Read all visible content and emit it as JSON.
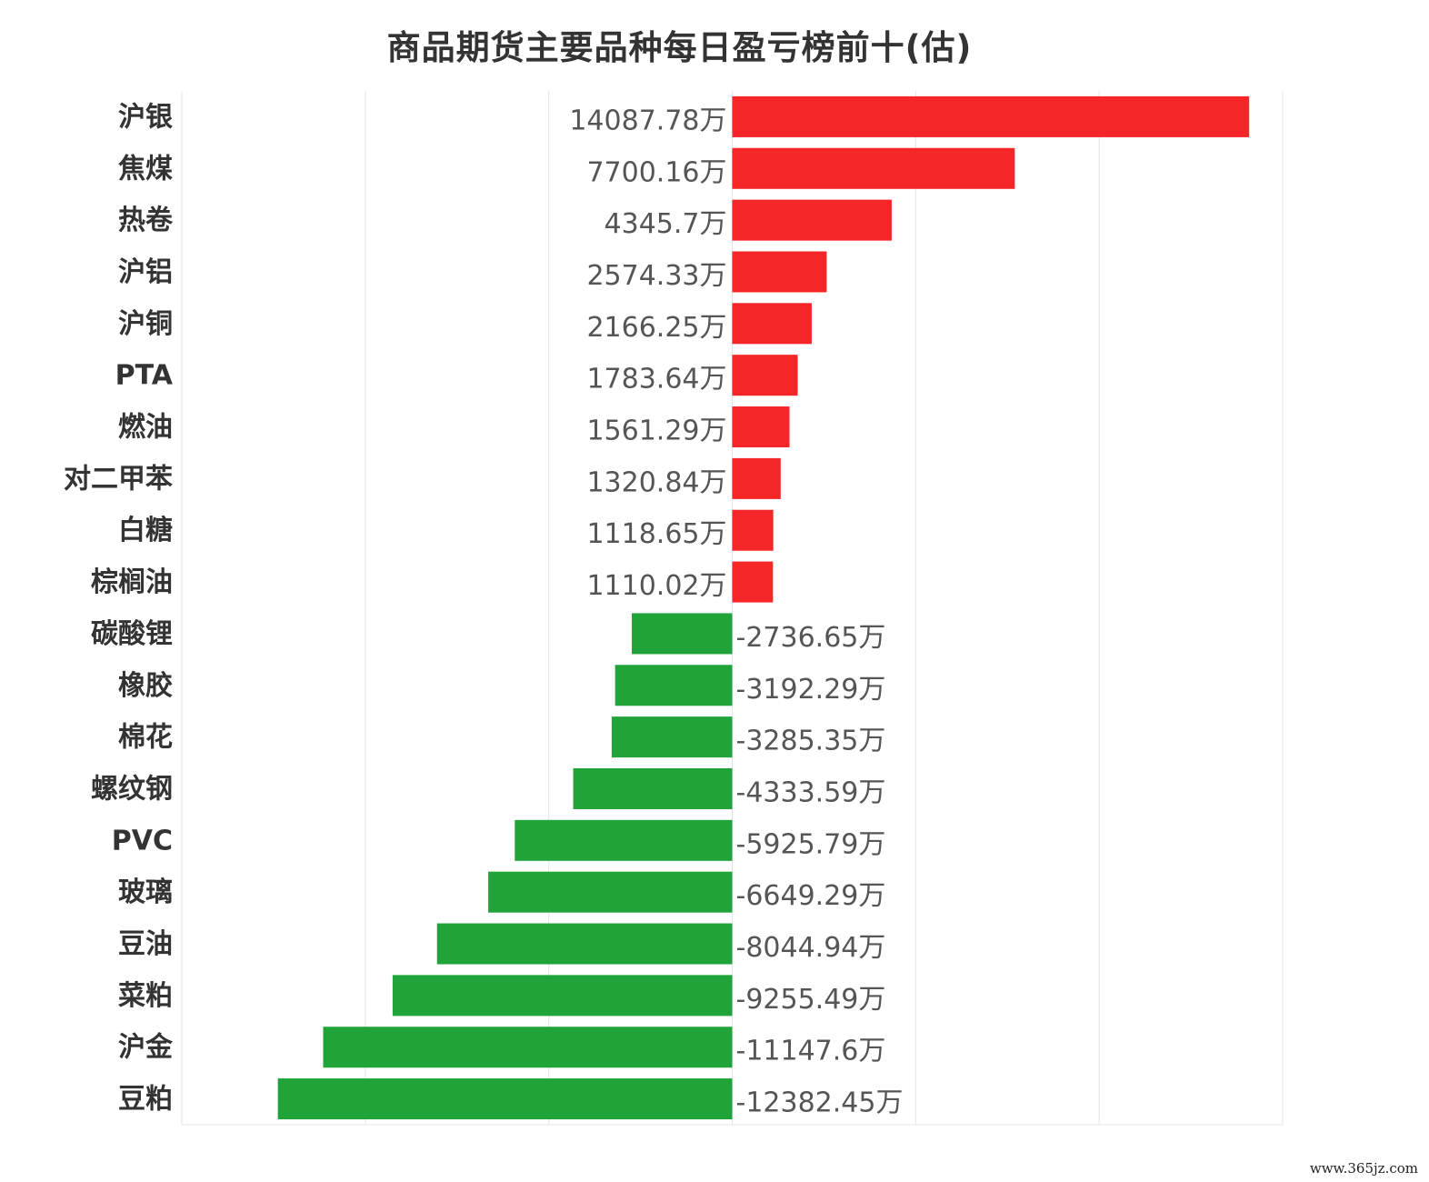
{
  "title": "商品期货主要品种每日盈亏榜前十(估)",
  "watermark": "www.365jz.com",
  "colors": {
    "positive": "#f52628",
    "negative": "#20a43a",
    "grid": "#e6e6e6",
    "text": "#333333",
    "value_text": "#555555"
  },
  "chart_data": {
    "type": "bar",
    "orientation": "horizontal",
    "title": "商品期货主要品种每日盈亏榜前十(估)",
    "unit": "万",
    "grid": true,
    "xlim": [
      -15000,
      15000
    ],
    "categories": [
      "沪银",
      "焦煤",
      "热卷",
      "沪铝",
      "沪铜",
      "PTA",
      "燃油",
      "对二甲苯",
      "白糖",
      "棕榈油",
      "碳酸锂",
      "橡胶",
      "棉花",
      "螺纹钢",
      "PVC",
      "玻璃",
      "豆油",
      "菜粕",
      "沪金",
      "豆粕"
    ],
    "values": [
      14087.78,
      7700.16,
      4345.7,
      2574.33,
      2166.25,
      1783.64,
      1561.29,
      1320.84,
      1118.65,
      1110.02,
      -2736.65,
      -3192.29,
      -3285.35,
      -4333.59,
      -5925.79,
      -6649.29,
      -8044.94,
      -9255.49,
      -11147.6,
      -12382.45
    ],
    "labels": [
      "14087.78万",
      "7700.16万",
      "4345.7万",
      "2574.33万",
      "2166.25万",
      "1783.64万",
      "1561.29万",
      "1320.84万",
      "1118.65万",
      "1110.02万",
      "-2736.65万",
      "-3192.29万",
      "-3285.35万",
      "-4333.59万",
      "-5925.79万",
      "-6649.29万",
      "-8044.94万",
      "-9255.49万",
      "-11147.6万",
      "-12382.45万"
    ]
  }
}
